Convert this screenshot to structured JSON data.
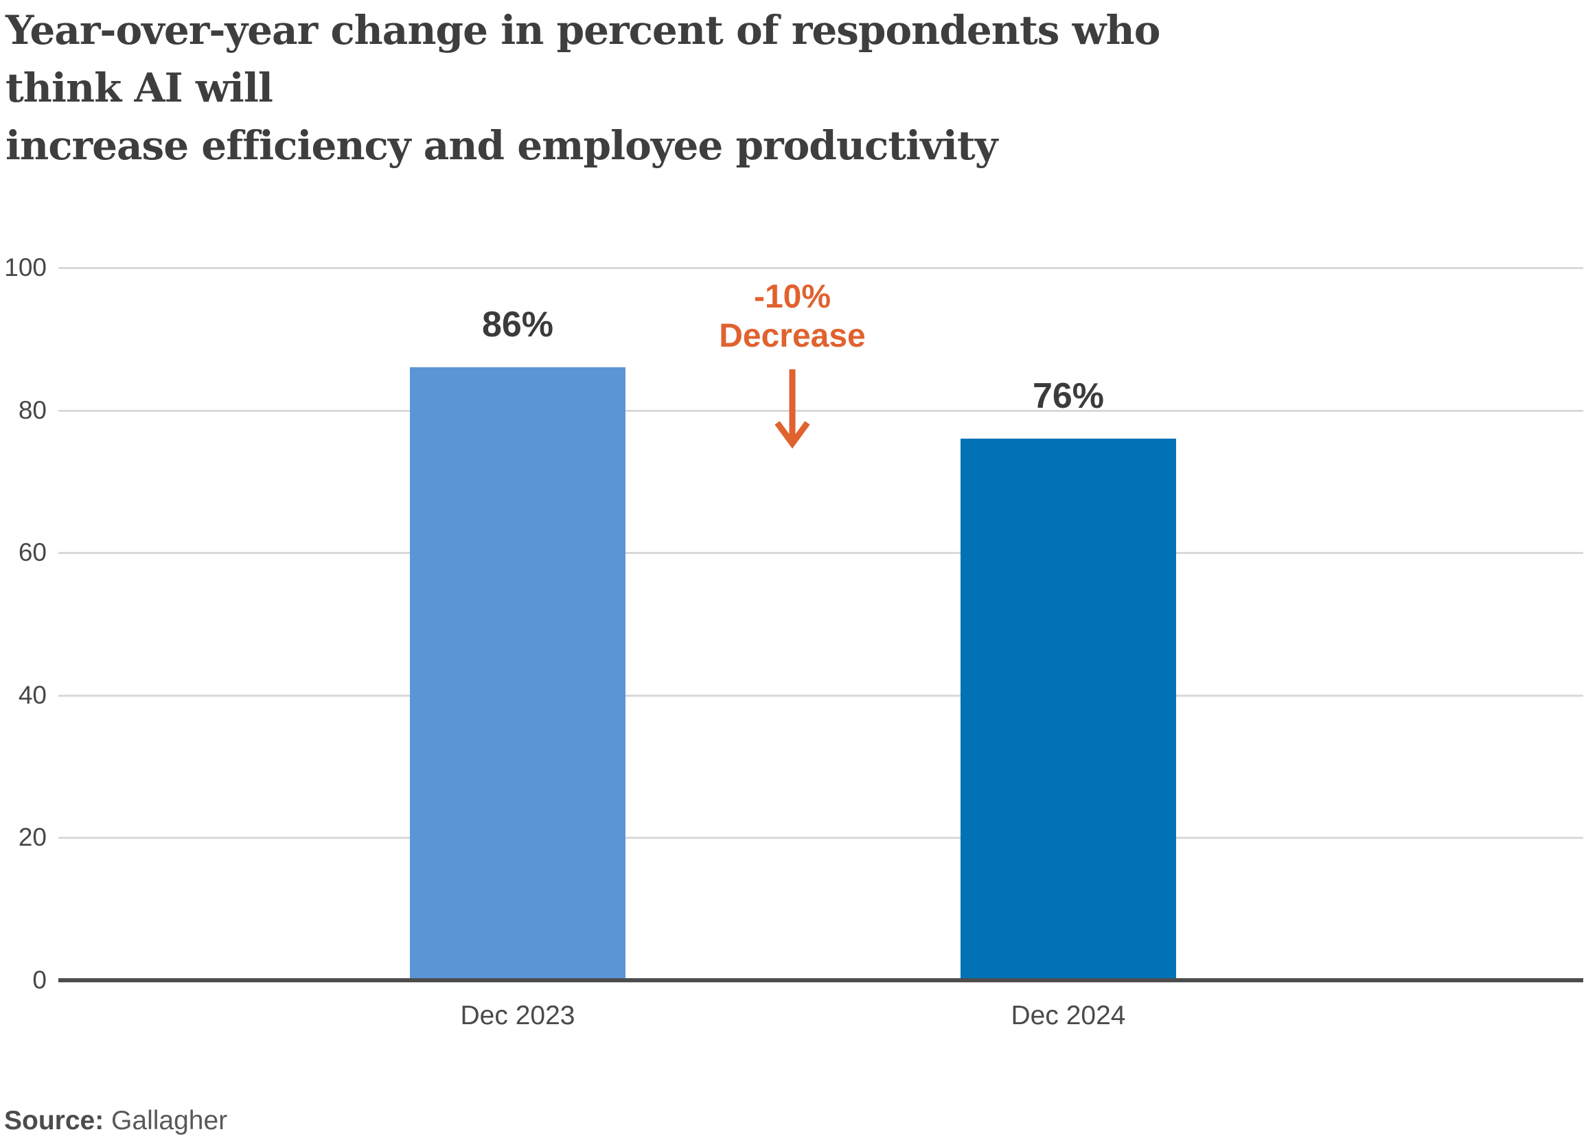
{
  "title_lines": [
    "Year-over-year change in percent of respondents who think AI will",
    "increase efficiency and employee productivity"
  ],
  "source": {
    "label": "Source:",
    "value": "Gallagher"
  },
  "colors": {
    "title_text": "#3e3e3e",
    "bar_dec_2023": "#5b95d6",
    "bar_dec_2024": "#0072b5",
    "annotation_orange": "#e0622f",
    "gridline": "#d9d9d9",
    "axis_line": "#4d4d4d"
  },
  "chart_data": {
    "type": "bar",
    "title": "Year-over-year change in percent of respondents who think AI will increase efficiency and employee productivity",
    "categories": [
      "Dec 2023",
      "Dec 2024"
    ],
    "values": [
      86,
      76
    ],
    "value_labels": [
      "86%",
      "76%"
    ],
    "bar_colors": [
      "#5b95d6",
      "#0072b5"
    ],
    "xlabel": "",
    "ylabel": "",
    "ylim": [
      0,
      100
    ],
    "yticks": [
      0,
      20,
      40,
      60,
      80,
      100
    ],
    "grid": true,
    "legend": false,
    "annotation": {
      "lines": [
        "-10%",
        "Decrease"
      ],
      "color": "#e0622f",
      "arrow": "down"
    }
  }
}
